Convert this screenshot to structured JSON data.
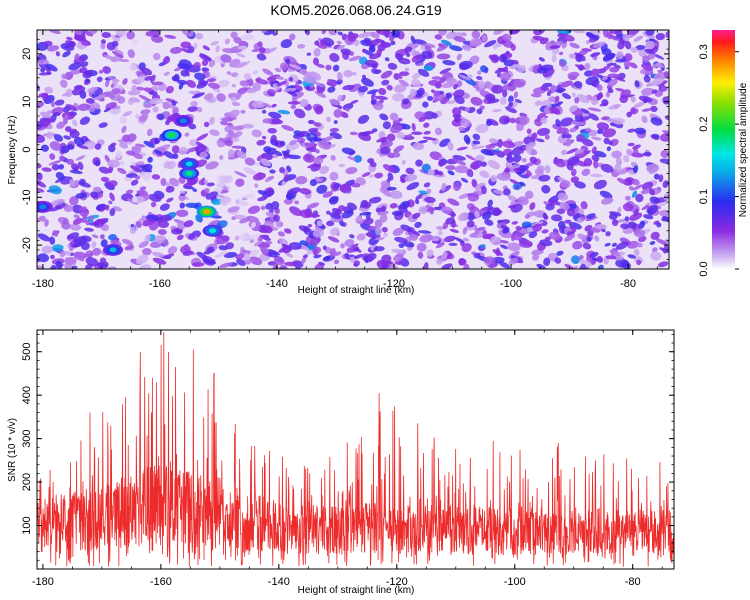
{
  "title": "KOM5.2026.068.06.24.G19",
  "chart_data": [
    {
      "type": "heatmap",
      "xlabel": "Height of straight line (km)",
      "ylabel": "Frequency (Hz)",
      "xlim": [
        -181,
        -73
      ],
      "ylim": [
        -25,
        25
      ],
      "xticks": [
        -180,
        -160,
        -140,
        -120,
        -100,
        -80
      ],
      "yticks": [
        20,
        10,
        0,
        -10,
        -20
      ],
      "colorbar": {
        "label": "Normalized spectral amplitude",
        "range": [
          0.0,
          0.33
        ],
        "ticks": [
          0.0,
          0.1,
          0.2,
          0.3
        ],
        "colormap": "rainbow (white-purple-blue-cyan-green-yellow-red-magenta)"
      },
      "ridge": {
        "description": "diagonal high-amplitude streak",
        "points": [
          [
            -170,
            -23
          ],
          [
            -160,
            5
          ],
          [
            -155,
            -8
          ],
          [
            -150,
            -15
          ],
          [
            -146,
            -25
          ]
        ],
        "peaks": [
          {
            "x": -152,
            "y": -13,
            "value": 0.28
          },
          {
            "x": -158,
            "y": 3,
            "value": 0.2
          },
          {
            "x": -155,
            "y": -5,
            "value": 0.18
          },
          {
            "x": -151,
            "y": -17,
            "value": 0.16
          },
          {
            "x": -155,
            "y": -3,
            "value": 0.15
          },
          {
            "x": -168,
            "y": -21,
            "value": 0.14
          },
          {
            "x": -180,
            "y": -12,
            "value": 0.12
          },
          {
            "x": -156,
            "y": 6,
            "value": 0.12
          }
        ]
      },
      "background_level": 0.06
    },
    {
      "type": "line",
      "xlabel": "Height of straight line (km)",
      "ylabel": "SNR (10 * v/v)",
      "xlim": [
        -181,
        -73
      ],
      "ylim": [
        0,
        550
      ],
      "xticks": [
        -180,
        -160,
        -140,
        -120,
        -100,
        -80
      ],
      "yticks": [
        100,
        200,
        300,
        400,
        500
      ],
      "series": [
        {
          "color": "#ee2b2b",
          "envelope": [
            {
              "x": -181,
              "base": 100,
              "max": 270
            },
            {
              "x": -170,
              "base": 120,
              "max": 360
            },
            {
              "x": -165,
              "base": 140,
              "max": 400
            },
            {
              "x": -161,
              "base": 150,
              "max": 500
            },
            {
              "x": -159,
              "base": 150,
              "max": 540
            },
            {
              "x": -155,
              "base": 140,
              "max": 505
            },
            {
              "x": -150,
              "base": 130,
              "max": 440
            },
            {
              "x": -145,
              "base": 110,
              "max": 330
            },
            {
              "x": -140,
              "base": 100,
              "max": 280
            },
            {
              "x": -130,
              "base": 95,
              "max": 270
            },
            {
              "x": -123,
              "base": 95,
              "max": 405
            },
            {
              "x": -110,
              "base": 90,
              "max": 280
            },
            {
              "x": -100,
              "base": 90,
              "max": 310
            },
            {
              "x": -90,
              "base": 90,
              "max": 290
            },
            {
              "x": -80,
              "base": 85,
              "max": 260
            },
            {
              "x": -73,
              "base": 85,
              "max": 240
            }
          ],
          "spikes": [
            {
              "x": -159.5,
              "y": 545
            },
            {
              "x": -163.5,
              "y": 500
            },
            {
              "x": -154.5,
              "y": 505
            },
            {
              "x": -157.5,
              "y": 465
            },
            {
              "x": -151,
              "y": 450
            },
            {
              "x": -123,
              "y": 405
            },
            {
              "x": -172,
              "y": 360
            },
            {
              "x": -166,
              "y": 395
            }
          ]
        }
      ]
    }
  ]
}
